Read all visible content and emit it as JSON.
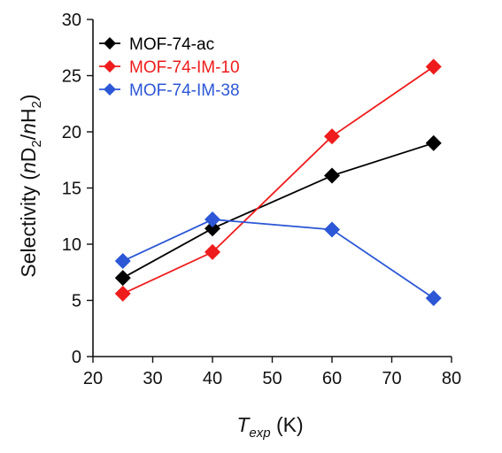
{
  "chart_data": {
    "type": "line",
    "title": "",
    "x": [
      25,
      40,
      60,
      77
    ],
    "xlim": [
      20,
      80
    ],
    "ylim": [
      0,
      30
    ],
    "xticks": [
      "20",
      "30",
      "40",
      "50",
      "60",
      "70",
      "80"
    ],
    "yticks": [
      "0",
      "5",
      "10",
      "15",
      "20",
      "25",
      "30"
    ],
    "xlabel": {
      "main": "T",
      "sub": "exp",
      "unit": " (K)"
    },
    "ylabel": {
      "p1": "Selectivity (",
      "n1": "n",
      "d": "D",
      "s1": "2",
      "slash": "/",
      "n2": "n",
      "h": "H",
      "s2": "2",
      "p2": ")"
    },
    "grid": false,
    "legend_position": "top-left",
    "series": [
      {
        "name": "MOF-74-ac",
        "color": "#000000",
        "values": [
          7.0,
          11.4,
          16.1,
          19.0
        ]
      },
      {
        "name": "MOF-74-IM-10",
        "color": "#ee1c1c",
        "values": [
          5.6,
          9.3,
          19.6,
          25.8
        ]
      },
      {
        "name": "MOF-74-IM-38",
        "color": "#2c57d6",
        "values": [
          8.5,
          12.2,
          11.3,
          5.2
        ]
      }
    ]
  }
}
